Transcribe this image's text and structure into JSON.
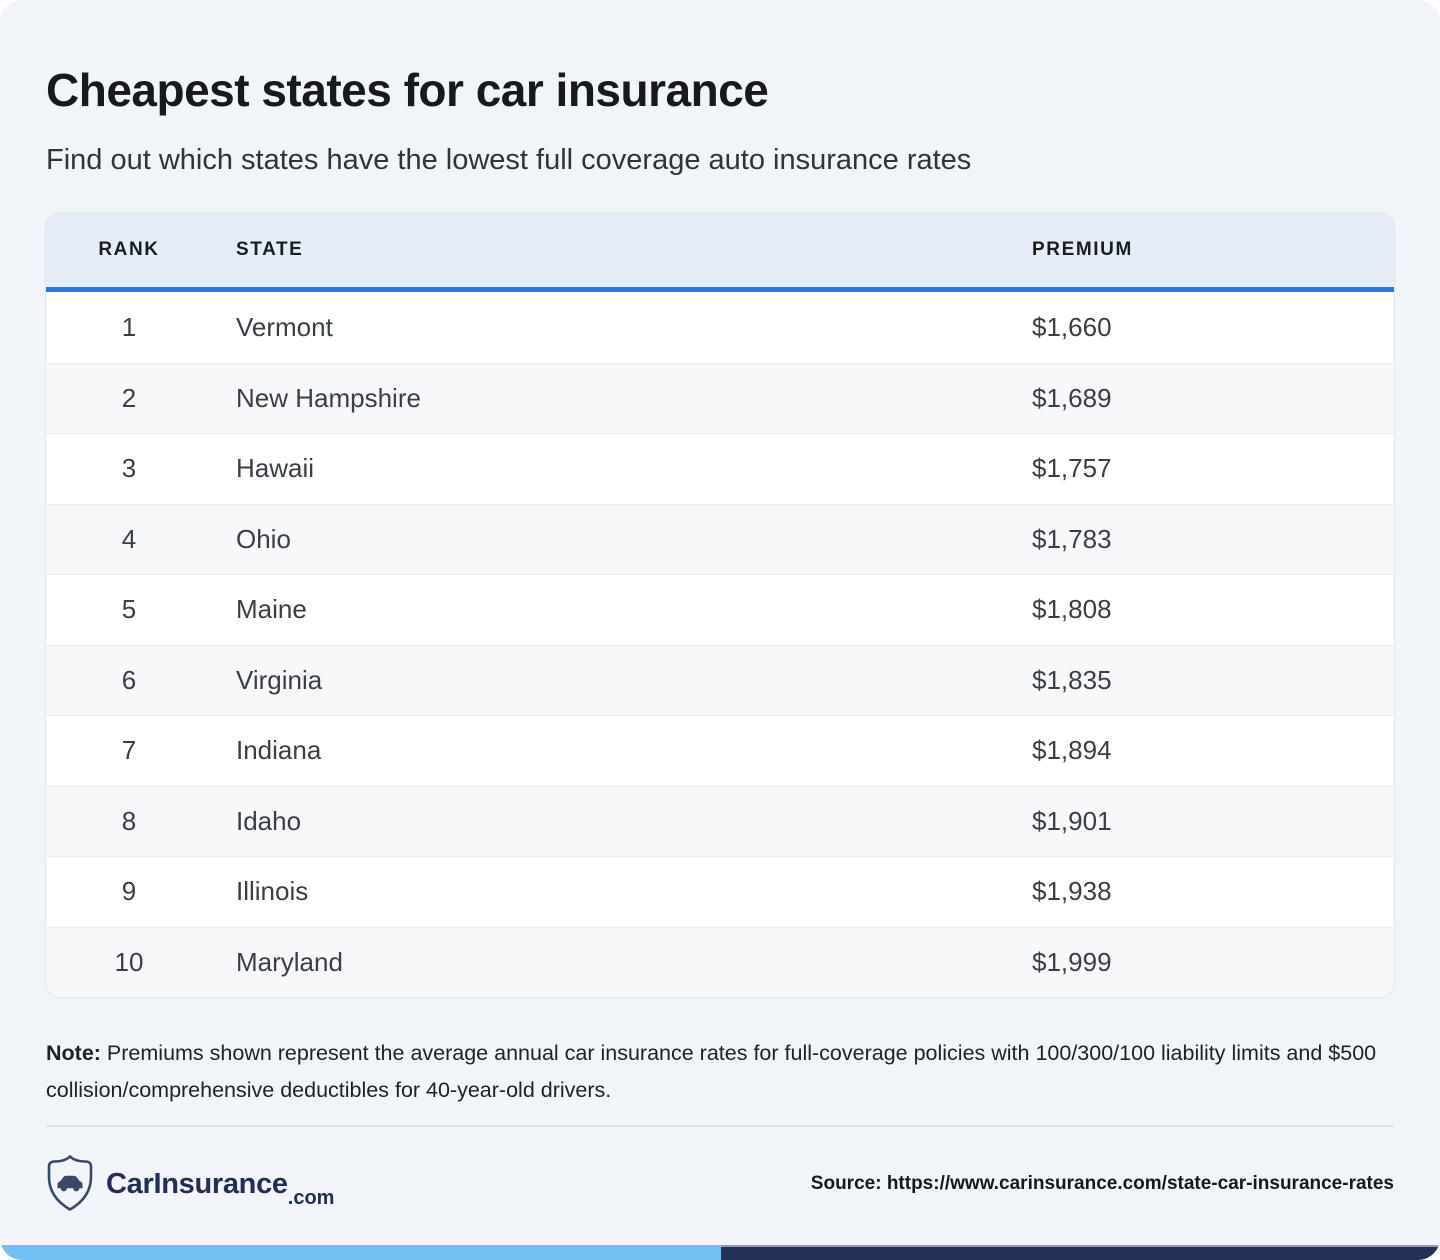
{
  "page": {
    "title": "Cheapest states for car insurance",
    "subtitle": "Find out which states have the lowest full coverage auto insurance rates",
    "note_label": "Note:",
    "note_text": "Premiums shown represent the average annual car insurance rates for full-coverage policies with 100/300/100 liability limits and $500 collision/comprehensive deductibles for 40-year-old drivers.",
    "source": "Source: https://www.carinsurance.com/state-car-insurance-rates"
  },
  "brand": {
    "name": "CarInsurance",
    "tld": ".com",
    "icon": "shield-car-icon"
  },
  "table": {
    "columns": [
      "RANK",
      "STATE",
      "PREMIUM"
    ],
    "rows": [
      {
        "rank": "1",
        "state": "Vermont",
        "premium": "$1,660"
      },
      {
        "rank": "2",
        "state": "New Hampshire",
        "premium": "$1,689"
      },
      {
        "rank": "3",
        "state": "Hawaii",
        "premium": "$1,757"
      },
      {
        "rank": "4",
        "state": "Ohio",
        "premium": "$1,783"
      },
      {
        "rank": "5",
        "state": "Maine",
        "premium": "$1,808"
      },
      {
        "rank": "6",
        "state": "Virginia",
        "premium": "$1,835"
      },
      {
        "rank": "7",
        "state": "Indiana",
        "premium": "$1,894"
      },
      {
        "rank": "8",
        "state": "Idaho",
        "premium": "$1,901"
      },
      {
        "rank": "9",
        "state": "Illinois",
        "premium": "$1,938"
      },
      {
        "rank": "10",
        "state": "Maryland",
        "premium": "$1,999"
      }
    ]
  },
  "chart_data": {
    "type": "table",
    "title": "Cheapest states for car insurance",
    "subtitle": "Find out which states have the lowest full coverage auto insurance rates",
    "columns": [
      "RANK",
      "STATE",
      "PREMIUM"
    ],
    "categories": [
      "Vermont",
      "New Hampshire",
      "Hawaii",
      "Ohio",
      "Maine",
      "Virginia",
      "Indiana",
      "Idaho",
      "Illinois",
      "Maryland"
    ],
    "ranks": [
      1,
      2,
      3,
      4,
      5,
      6,
      7,
      8,
      9,
      10
    ],
    "values": [
      1660,
      1689,
      1757,
      1783,
      1808,
      1835,
      1894,
      1901,
      1938,
      1999
    ],
    "value_unit": "USD per year",
    "note": "Premiums shown represent the average annual car insurance rates for full-coverage policies with 100/300/100 liability limits and $500 collision/comprehensive deductibles for 40-year-old drivers."
  },
  "colors": {
    "page_bg": "#f1f5fa",
    "header_bg": "#e4edf8",
    "accent_blue": "#1f7cf0",
    "row_alt_bg": "#f7f8fa",
    "brand_navy": "#232e52",
    "bar_light_blue": "#73c1f3",
    "bar_navy": "#253258"
  }
}
